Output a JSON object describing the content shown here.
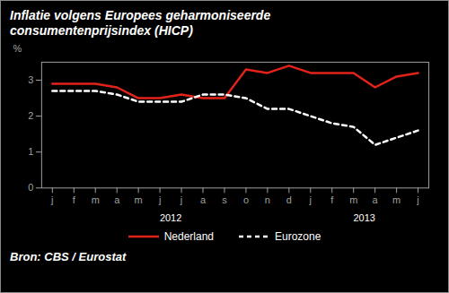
{
  "chart_data": {
    "type": "line",
    "title": "Inflatie volgens Europees geharmoniseerde consumentenprijsindex (HICP)",
    "source": "Bron: CBS / Eurostat",
    "y_label": "%",
    "categories": [
      "j",
      "f",
      "m",
      "a",
      "m",
      "j",
      "j",
      "a",
      "s",
      "o",
      "n",
      "d",
      "j",
      "f",
      "m",
      "a",
      "m",
      "j"
    ],
    "x_years": [
      "2012",
      "2012",
      "2012",
      "2012",
      "2012",
      "2012",
      "2012",
      "2012",
      "2012",
      "2012",
      "2012",
      "2012",
      "2013",
      "2013",
      "2013",
      "2013",
      "2013",
      "2013"
    ],
    "series": [
      {
        "name": "Nederland",
        "color": "#e2231a",
        "line_style": "solid",
        "values": [
          2.9,
          2.9,
          2.9,
          2.8,
          2.5,
          2.5,
          2.6,
          2.5,
          2.5,
          3.3,
          3.2,
          3.4,
          3.2,
          3.2,
          3.2,
          2.8,
          3.1,
          3.2
        ]
      },
      {
        "name": "Eurozone",
        "color": "#ffffff",
        "line_style": "dashed",
        "values": [
          2.7,
          2.7,
          2.7,
          2.6,
          2.4,
          2.4,
          2.4,
          2.6,
          2.6,
          2.5,
          2.2,
          2.2,
          2.0,
          1.8,
          1.7,
          1.2,
          1.4,
          1.6
        ]
      }
    ],
    "ylim": [
      0,
      3.5
    ],
    "yticks": [
      0,
      1,
      2,
      3
    ],
    "grid": false,
    "legend": "bottom"
  }
}
